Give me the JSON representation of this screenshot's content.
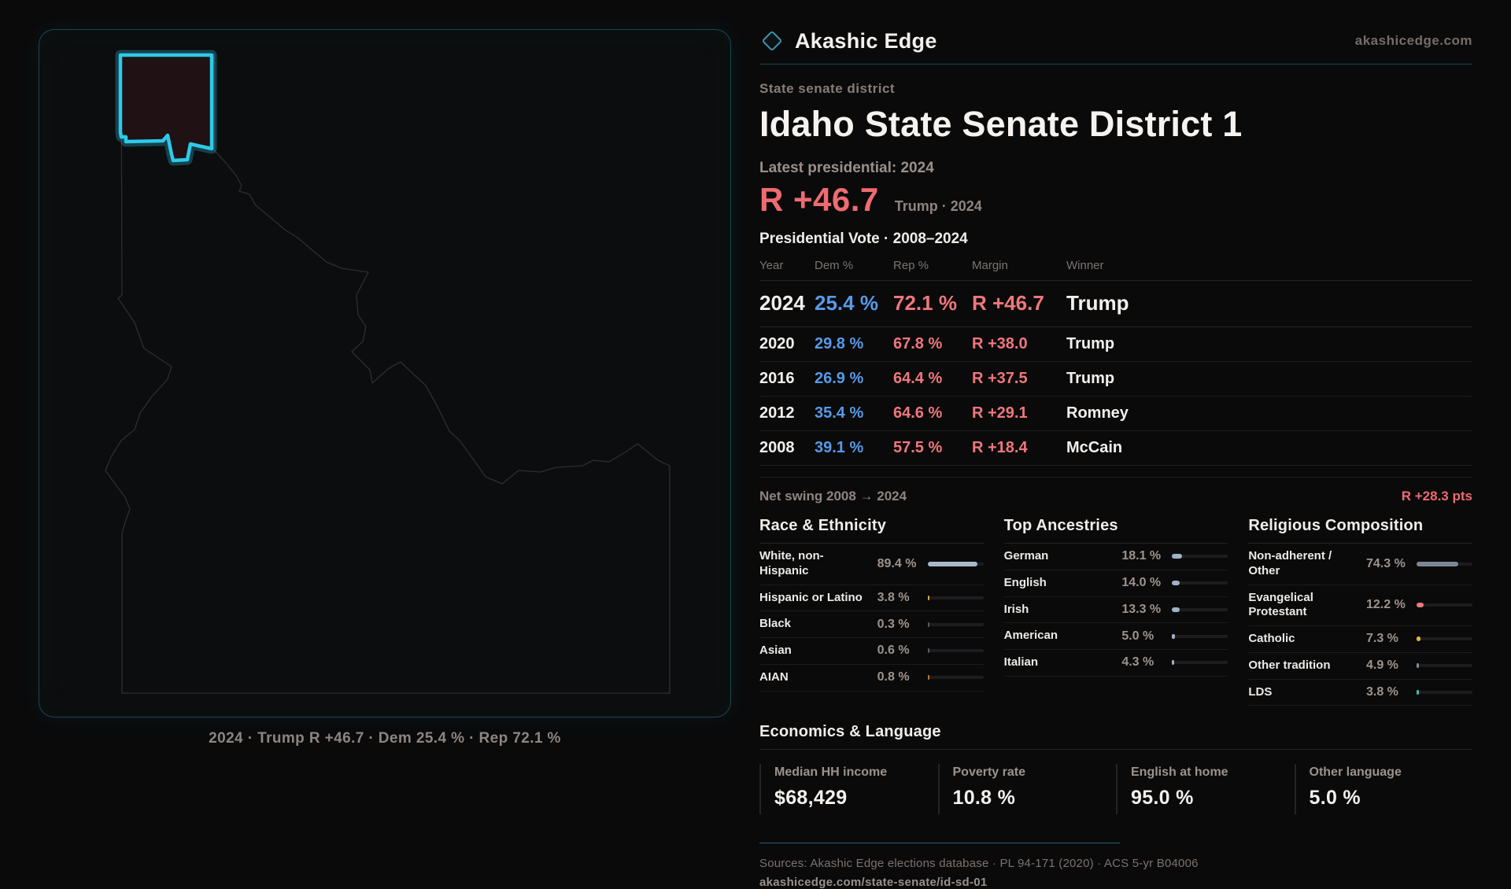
{
  "brand": {
    "name": "Akashic Edge",
    "website": "akashicedge.com"
  },
  "district": {
    "eyebrow": "State senate district",
    "title": "Idaho State Senate District 1"
  },
  "latest": {
    "label": "Latest presidential: 2024",
    "value": "R +46.7",
    "context": "Trump · 2024"
  },
  "presidential_table": {
    "title": "Presidential Vote · 2008–2024",
    "columns": [
      "Year",
      "Dem %",
      "Rep %",
      "Margin",
      "Winner"
    ],
    "rows": [
      {
        "year": "2024",
        "dem": "25.4 %",
        "rep": "72.1 %",
        "margin": "R +46.7",
        "winner": "Trump",
        "featured": true
      },
      {
        "year": "2020",
        "dem": "29.8 %",
        "rep": "67.8 %",
        "margin": "R +38.0",
        "winner": "Trump",
        "featured": false
      },
      {
        "year": "2016",
        "dem": "26.9 %",
        "rep": "64.4 %",
        "margin": "R +37.5",
        "winner": "Trump",
        "featured": false
      },
      {
        "year": "2012",
        "dem": "35.4 %",
        "rep": "64.6 %",
        "margin": "R +29.1",
        "winner": "Romney",
        "featured": false
      },
      {
        "year": "2008",
        "dem": "39.1 %",
        "rep": "57.5 %",
        "margin": "R +18.4",
        "winner": "McCain",
        "featured": false
      }
    ]
  },
  "net_swing": {
    "label": "Net swing 2008 → 2024",
    "value": "R +28.3 pts"
  },
  "demographics": [
    {
      "title": "Race & Ethnicity",
      "items": [
        {
          "label": "White, non-Hispanic",
          "value": "89.4 %",
          "pct": 89.4,
          "color": "#a9b9cc"
        },
        {
          "label": "Hispanic or Latino",
          "value": "3.8 %",
          "pct": 3.8,
          "color": "#e2a13c"
        },
        {
          "label": "Black",
          "value": "0.3 %",
          "pct": 0.3,
          "color": "#565b62"
        },
        {
          "label": "Asian",
          "value": "0.6 %",
          "pct": 0.6,
          "color": "#565b62"
        },
        {
          "label": "AIAN",
          "value": "0.8 %",
          "pct": 0.8,
          "color": "#c4762f"
        }
      ]
    },
    {
      "title": "Top Ancestries",
      "items": [
        {
          "label": "German",
          "value": "18.1 %",
          "pct": 18.1,
          "color": "#9fb2c6"
        },
        {
          "label": "English",
          "value": "14.0 %",
          "pct": 14.0,
          "color": "#9fb2c6"
        },
        {
          "label": "Irish",
          "value": "13.3 %",
          "pct": 13.3,
          "color": "#9fb2c6"
        },
        {
          "label": "American",
          "value": "5.0 %",
          "pct": 5.0,
          "color": "#9fb2c6"
        },
        {
          "label": "Italian",
          "value": "4.3 %",
          "pct": 4.3,
          "color": "#9fb2c6"
        }
      ]
    },
    {
      "title": "Religious Composition",
      "items": [
        {
          "label": "Non-adherent / Other",
          "value": "74.3 %",
          "pct": 74.3,
          "color": "#7c8696"
        },
        {
          "label": "Evangelical Protestant",
          "value": "12.2 %",
          "pct": 12.2,
          "color": "#e87b7b"
        },
        {
          "label": "Catholic",
          "value": "7.3 %",
          "pct": 7.3,
          "color": "#e3b83e"
        },
        {
          "label": "Other tradition",
          "value": "4.9 %",
          "pct": 4.9,
          "color": "#7f8d93"
        },
        {
          "label": "LDS",
          "value": "3.8 %",
          "pct": 3.8,
          "color": "#35c3b0"
        }
      ]
    }
  ],
  "economics": {
    "title": "Economics & Language",
    "stats": [
      {
        "label": "Median HH income",
        "value": "$68,429"
      },
      {
        "label": "Poverty rate",
        "value": "10.8 %"
      },
      {
        "label": "English at home",
        "value": "95.0 %"
      },
      {
        "label": "Other language",
        "value": "5.0 %"
      }
    ]
  },
  "map": {
    "caption": "2024 · Trump R +46.7 · Dem 25.4 % · Rep 72.1 %",
    "district_fill": "#201114",
    "district_stroke": "#2ec9e9",
    "state_outline": "#2e2e31"
  },
  "footer": {
    "sources": "Sources: Akashic Edge elections database · PL 94-171 (2020) · ACS 5-yr B04006",
    "permalink": "akashicedge.com/state-senate/id-sd-01"
  },
  "colors": {
    "dem": "#579ae8",
    "rep": "#f0777b",
    "accent_red": "#ee6b70",
    "accent_cyan": "#2ec9e9"
  }
}
